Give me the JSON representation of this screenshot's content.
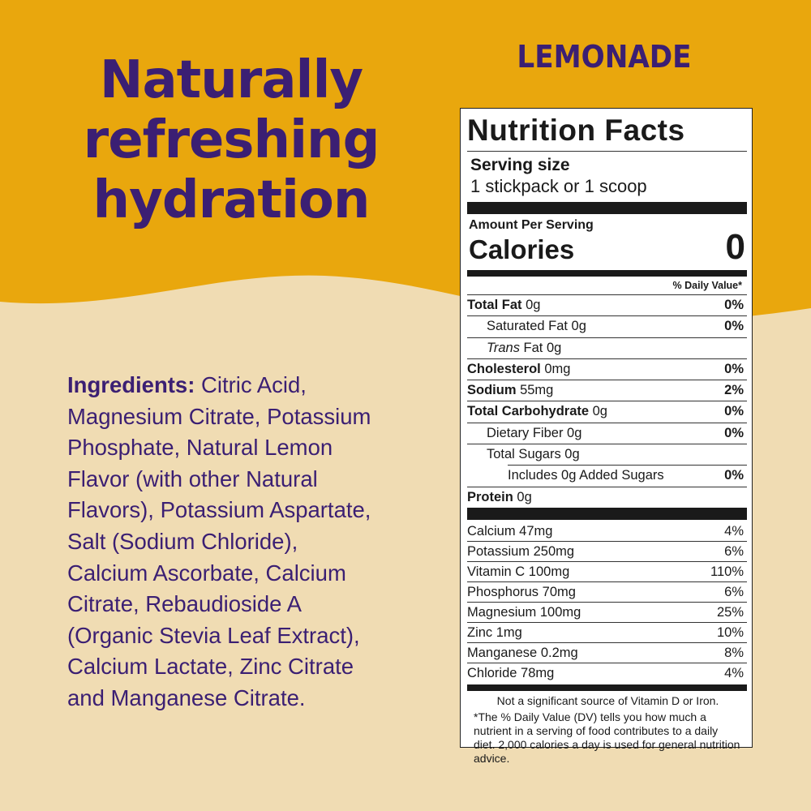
{
  "colors": {
    "top_band": "#e9a70d",
    "bottom_band": "#f0dcb3",
    "brand_purple": "#3b1f73"
  },
  "headline": [
    "Naturally",
    "refreshing",
    "hydration"
  ],
  "flavor": "LEMONADE",
  "ingredients": {
    "label": "Ingredients:",
    "lines": [
      " Citric Acid,",
      "Magnesium Citrate, Potassium",
      "Phosphate, Natural Lemon",
      "Flavor (with other Natural",
      "Flavors), Potassium Aspartate,",
      "Salt (Sodium Chloride),",
      "Calcium Ascorbate, Calcium",
      "Citrate, Rebaudioside A",
      "(Organic Stevia Leaf Extract),",
      "Calcium Lactate, Zinc Citrate",
      "and Manganese Citrate."
    ]
  },
  "nutrition": {
    "title": "Nutrition Facts",
    "serving_size_label": "Serving size",
    "serving_size": "1 stickpack or 1 scoop",
    "amount_per_serving": "Amount Per Serving",
    "calories_label": "Calories",
    "calories": "0",
    "daily_value_header": "% Daily Value*",
    "nutrients": [
      {
        "name": "Total Fat",
        "amount": " 0g",
        "dv": "0%"
      },
      {
        "name": "Saturated Fat 0g",
        "dv": "0%"
      },
      {
        "name_italic": "Trans",
        "name": " Fat 0g",
        "dv": ""
      },
      {
        "name": "Cholesterol",
        "amount": " 0mg",
        "dv": "0%"
      },
      {
        "name": "Sodium",
        "amount": " 55mg",
        "dv": "2%"
      },
      {
        "name": "Total Carbohydrate",
        "amount": " 0g",
        "dv": "0%"
      },
      {
        "name": "Dietary Fiber 0g",
        "dv": "0%"
      },
      {
        "name": "Total Sugars 0g",
        "dv": ""
      },
      {
        "name": "Includes 0g Added Sugars",
        "dv": "0%"
      },
      {
        "name": "Protein",
        "amount": " 0g",
        "dv": ""
      }
    ],
    "minerals": [
      {
        "name": "Calcium 47mg",
        "dv": "4%"
      },
      {
        "name": "Potassium 250mg",
        "dv": "6%"
      },
      {
        "name": "Vitamin C 100mg",
        "dv": "110%"
      },
      {
        "name": "Phosphorus 70mg",
        "dv": "6%"
      },
      {
        "name": "Magnesium 100mg",
        "dv": "25%"
      },
      {
        "name": "Zinc 1mg",
        "dv": "10%"
      },
      {
        "name": "Manganese 0.2mg",
        "dv": "8%"
      },
      {
        "name": "Chloride 78mg",
        "dv": "4%"
      }
    ],
    "not_significant": "Not a significant source of Vitamin D or Iron.",
    "footnote": "*The % Daily Value (DV) tells you how much a nutrient in a serving of food contributes to a daily diet. 2,000 calories a day is used for general nutrition advice."
  }
}
